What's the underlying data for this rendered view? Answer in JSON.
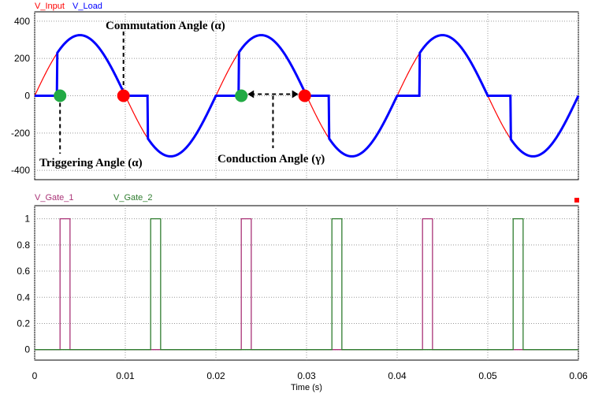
{
  "chart_data": [
    {
      "type": "line",
      "panel": "top",
      "title": "",
      "xlabel": "",
      "ylabel": "",
      "xlim": [
        0,
        0.06
      ],
      "ylim": [
        -450,
        450
      ],
      "x_ticks": [
        0,
        0.01,
        0.02,
        0.03,
        0.04,
        0.05,
        0.06
      ],
      "y_ticks": [
        400,
        200,
        0,
        -200,
        -400
      ],
      "y_tick_labels": [
        "400",
        "200",
        "0",
        "-200",
        "-400"
      ],
      "grid": true,
      "legend_placement": "top-left",
      "amplitude": 325,
      "frequency_hz": 50,
      "series": [
        {
          "name": "V_Input",
          "color": "#ff0000",
          "description_values": {
            "x": [
              0,
              0.0025,
              0.005,
              0.0075,
              0.01,
              0.0125,
              0.015,
              0.0175,
              0.02,
              0.0225,
              0.025,
              0.0275,
              0.03,
              0.0325,
              0.035,
              0.0375,
              0.04,
              0.0425,
              0.045,
              0.0475,
              0.05,
              0.0525,
              0.055,
              0.0575,
              0.06
            ],
            "y": [
              0,
              230,
              325,
              230,
              0,
              -230,
              -325,
              -230,
              0,
              230,
              325,
              230,
              0,
              -230,
              -325,
              -230,
              0,
              230,
              325,
              230,
              0,
              -230,
              -325,
              -230,
              0
            ]
          }
        },
        {
          "name": "V_Load",
          "color": "#0000ff",
          "trigger_delay_s": 0.0025,
          "description_values": {
            "x": [
              0,
              0.0025,
              0.0025,
              0.005,
              0.0075,
              0.01,
              0.0125,
              0.0125,
              0.015,
              0.0175,
              0.02,
              0.0225,
              0.0225,
              0.025,
              0.0275,
              0.03,
              0.0325,
              0.0325,
              0.035,
              0.0375,
              0.04,
              0.0425,
              0.0425,
              0.045,
              0.0475,
              0.05,
              0.0525,
              0.0525,
              0.055,
              0.0575,
              0.06
            ],
            "y": [
              0,
              0,
              230,
              325,
              230,
              0,
              0,
              -230,
              -325,
              -230,
              0,
              0,
              230,
              325,
              230,
              0,
              0,
              -230,
              -325,
              -230,
              0,
              0,
              230,
              325,
              230,
              0,
              0,
              -230,
              -325,
              -230,
              0
            ]
          }
        }
      ],
      "markers": [
        {
          "name": "trigger-point-1",
          "x": 0.0028,
          "y": 0,
          "color": "#22aa44"
        },
        {
          "name": "commutation-point-1",
          "x": 0.0098,
          "y": 0,
          "color": "#ff0000"
        },
        {
          "name": "trigger-point-2",
          "x": 0.0228,
          "y": 0,
          "color": "#22aa44"
        },
        {
          "name": "commutation-point-2",
          "x": 0.0298,
          "y": 0,
          "color": "#ff0000"
        }
      ],
      "annotations": [
        {
          "name": "commutation-angle-label",
          "text": "Commutation Angle (α)"
        },
        {
          "name": "triggering-angle-label",
          "text": "Triggering Angle (α)"
        },
        {
          "name": "conduction-angle-label",
          "text": "Conduction Angle (γ)"
        }
      ]
    },
    {
      "type": "line",
      "panel": "bottom",
      "title": "",
      "xlabel": "Time (s)",
      "ylabel": "",
      "xlim": [
        0,
        0.06
      ],
      "ylim": [
        -0.08,
        1.1
      ],
      "x_ticks": [
        0,
        0.01,
        0.02,
        0.03,
        0.04,
        0.05,
        0.06
      ],
      "x_tick_labels": [
        "0",
        "0.01",
        "0.02",
        "0.03",
        "0.04",
        "0.05",
        "0.06"
      ],
      "y_ticks": [
        1,
        0.8,
        0.6,
        0.4,
        0.2,
        0
      ],
      "y_tick_labels": [
        "1",
        "0.8",
        "0.6",
        "0.4",
        "0.2",
        "0"
      ],
      "grid": true,
      "legend_placement": "top-left",
      "series": [
        {
          "name": "V_Gate_1",
          "color": "#aa3377",
          "pulses": [
            [
              0.0028,
              0.0039
            ],
            [
              0.0228,
              0.0239
            ],
            [
              0.0428,
              0.0439
            ]
          ]
        },
        {
          "name": "V_Gate_2",
          "color": "#2f7d2f",
          "pulses": [
            [
              0.0128,
              0.0139
            ],
            [
              0.0328,
              0.0339
            ],
            [
              0.0528,
              0.0539
            ]
          ]
        }
      ]
    }
  ]
}
